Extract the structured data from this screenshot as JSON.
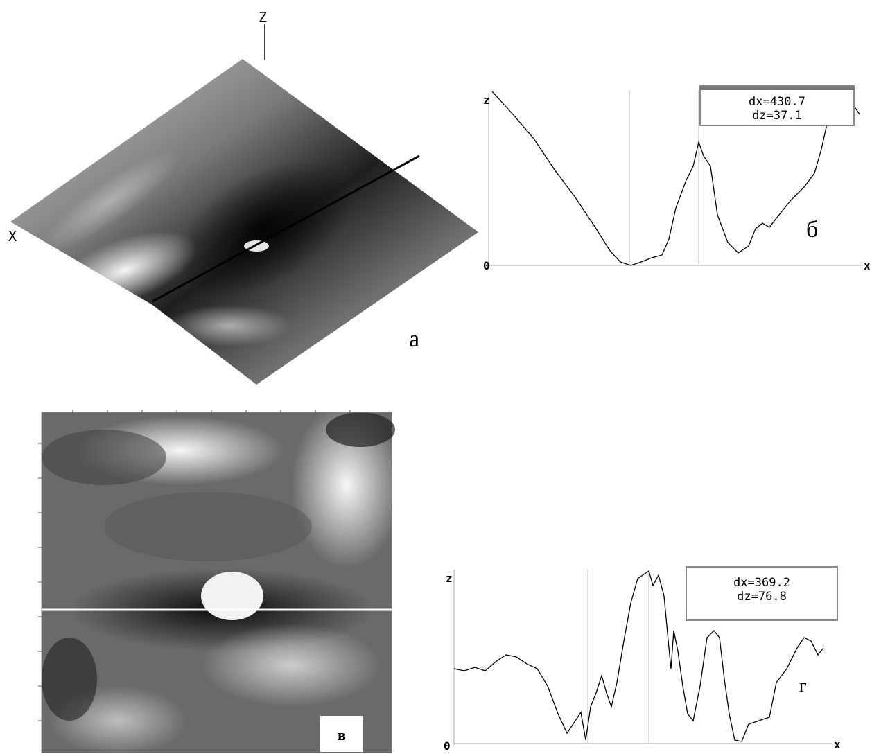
{
  "panels": [
    {
      "label": "а",
      "axis_z": "Z",
      "axis_x": "X"
    },
    {
      "label": "б",
      "axis_z": "z",
      "axis_origin": "0",
      "axis_x": "x",
      "readout": [
        "dx=430.7",
        "dz=37.1"
      ]
    },
    {
      "label": "в"
    },
    {
      "label": "г",
      "axis_z": "z",
      "axis_origin": "0",
      "axis_x": "x",
      "readout": [
        "dx=369.2",
        "dz=76.8"
      ]
    }
  ]
}
